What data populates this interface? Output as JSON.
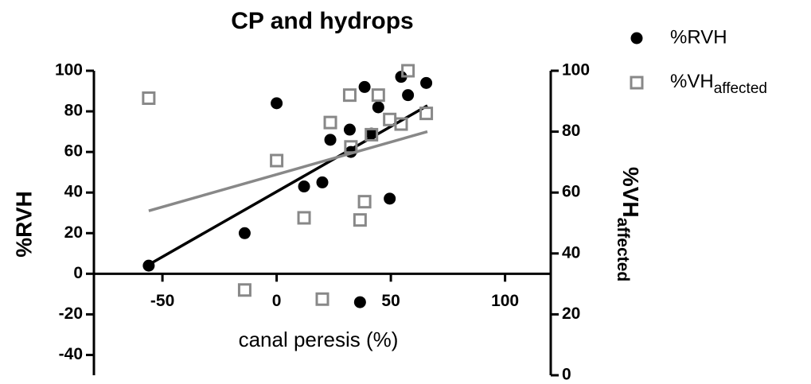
{
  "chart_data": {
    "type": "scatter",
    "title": "CP and hydrops",
    "xlabel": "canal peresis (%)",
    "ylabel": "%RVH",
    "y2label": "%VH",
    "y2label_sub": "affected",
    "xlim": [
      -80,
      120
    ],
    "xticks": [
      -50,
      0,
      50,
      100
    ],
    "ylim": [
      -50,
      100
    ],
    "yticks": [
      -40,
      -20,
      0,
      20,
      40,
      60,
      80,
      100
    ],
    "y2lim": [
      0,
      100
    ],
    "y2ticks": [
      0,
      20,
      40,
      60,
      80,
      100
    ],
    "legend": "top-right",
    "series": [
      {
        "name": "%RVH",
        "color": "#000000",
        "marker": "circle",
        "axis": "y",
        "x": [
          -56,
          -14,
          0,
          12,
          20,
          23.5,
          32,
          32.5,
          38.5,
          41.5,
          44.5,
          49.5,
          54.5,
          57.5,
          65.5,
          36.5
        ],
        "values": [
          4,
          20,
          84,
          43,
          45,
          66,
          71,
          60,
          92,
          69,
          82,
          37,
          97,
          88,
          94,
          -14
        ],
        "fit": {
          "x": [
            -56,
            66
          ],
          "values": [
            4.5,
            82.8
          ]
        }
      },
      {
        "name": "%VH",
        "name_sub": "affected",
        "color": "#888888",
        "marker": "square",
        "axis": "y2",
        "x": [
          -56,
          -14,
          0,
          12,
          20,
          23.5,
          32,
          32.5,
          38.5,
          36.5,
          41.5,
          44.5,
          49.5,
          54.5,
          57.5,
          65.5
        ],
        "values": [
          91,
          28,
          70.5,
          51.7,
          25,
          83,
          92,
          75,
          57,
          51,
          79,
          92,
          84,
          82.5,
          100,
          86
        ],
        "fit": {
          "x": [
            -56,
            66
          ],
          "values": [
            54,
            80
          ]
        }
      }
    ]
  }
}
